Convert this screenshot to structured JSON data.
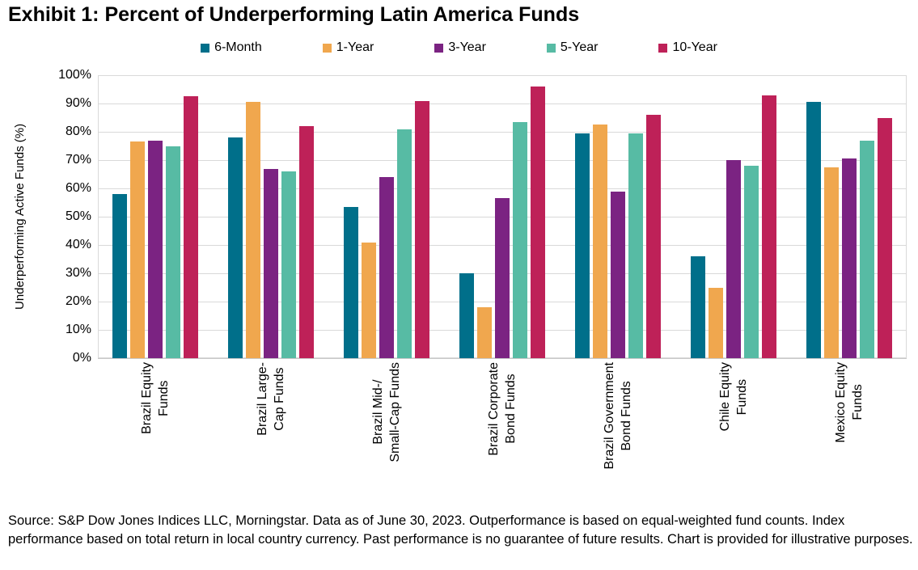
{
  "title": "Exhibit 1: Percent of Underperforming Latin America Funds",
  "source_note": "Source: S&P Dow Jones Indices LLC, Morningstar. Data as of June 30, 2023. Outperformance is based on equal-weighted fund counts. Index performance based on total return in local country currency. Past performance is no guarantee of future results. Chart is provided for illustrative purposes.",
  "chart_data": {
    "type": "bar",
    "title": "Exhibit 1: Percent of Underperforming Latin America Funds",
    "xlabel": "",
    "ylabel": "Underperforming Active Funds (%)",
    "ylim": [
      0,
      100
    ],
    "y_tick_step": 10,
    "y_tick_suffix": "%",
    "grid": true,
    "legend_position": "top",
    "categories": [
      "Brazil Equity Funds",
      "Brazil Large-Cap Funds",
      "Brazil Mid-/Small-Cap Funds",
      "Brazil Corporate Bond Funds",
      "Brazil Government Bond Funds",
      "Chile Equity Funds",
      "Mexico Equity Funds"
    ],
    "category_label_lines": [
      [
        "Brazil Equity",
        "Funds"
      ],
      [
        "Brazil Large-",
        "Cap Funds"
      ],
      [
        "Brazil Mid-/",
        "Small-Cap Funds"
      ],
      [
        "Brazil Corporate",
        "Bond Funds"
      ],
      [
        "Brazil Government",
        "Bond Funds"
      ],
      [
        "Chile Equity",
        "Funds"
      ],
      [
        "Mexico Equity",
        "Funds"
      ]
    ],
    "series": [
      {
        "name": "6-Month",
        "color": "#006F8A",
        "values": [
          58,
          78,
          53.5,
          30,
          79.5,
          36,
          90.5
        ]
      },
      {
        "name": "1-Year",
        "color": "#F0A74E",
        "values": [
          76.5,
          90.5,
          41,
          18,
          82.5,
          25,
          67.5
        ]
      },
      {
        "name": "3-Year",
        "color": "#7B2382",
        "values": [
          77,
          67,
          64,
          56.5,
          59,
          70,
          70.5
        ]
      },
      {
        "name": "5-Year",
        "color": "#57BBA4",
        "values": [
          75,
          66,
          81,
          83.5,
          79.5,
          68,
          77
        ]
      },
      {
        "name": "10-Year",
        "color": "#BE2158",
        "values": [
          92.5,
          82,
          91,
          96,
          86,
          93,
          85
        ]
      }
    ]
  }
}
